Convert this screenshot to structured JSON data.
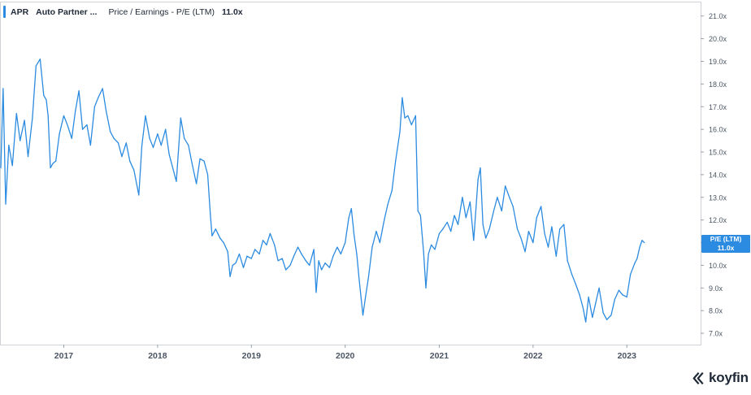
{
  "legend": {
    "ticker": "APR",
    "company": "Auto Partner ...",
    "metric": "Price / Earnings - P/E (LTM)",
    "last_value": "11.0x",
    "color": "#2b8be0"
  },
  "last_badge": {
    "label": "P/E (LTM)",
    "value": "11.0x"
  },
  "brand": {
    "name": "koyfin",
    "icon": "koyfin-logo-icon"
  },
  "chart_data": {
    "type": "line",
    "title": "",
    "xlabel": "",
    "ylabel": "",
    "ylim": [
      6.5,
      21.6
    ],
    "xlim": [
      "2016-05-01",
      "2023-10-15"
    ],
    "y_ticks": [
      "7.0x",
      "8.0x",
      "9.0x",
      "10.0x",
      "11.0x",
      "12.0x",
      "13.0x",
      "14.0x",
      "15.0x",
      "16.0x",
      "17.0x",
      "18.0x",
      "19.0x",
      "20.0x",
      "21.0x"
    ],
    "x_ticks": [
      "2017",
      "2018",
      "2019",
      "2020",
      "2021",
      "2022",
      "2023"
    ],
    "series": [
      {
        "name": "P/E (LTM)",
        "color": "#2b8be0",
        "points": [
          [
            "2016-05-01",
            14.3
          ],
          [
            "2016-05-10",
            17.8
          ],
          [
            "2016-05-20",
            12.7
          ],
          [
            "2016-06-01",
            15.3
          ],
          [
            "2016-06-15",
            14.4
          ],
          [
            "2016-07-01",
            16.7
          ],
          [
            "2016-07-15",
            15.5
          ],
          [
            "2016-08-01",
            16.4
          ],
          [
            "2016-08-15",
            14.8
          ],
          [
            "2016-09-01",
            16.5
          ],
          [
            "2016-09-15",
            18.8
          ],
          [
            "2016-10-01",
            19.1
          ],
          [
            "2016-10-15",
            17.5
          ],
          [
            "2016-10-25",
            17.3
          ],
          [
            "2016-11-01",
            16.6
          ],
          [
            "2016-11-10",
            14.3
          ],
          [
            "2016-11-20",
            14.5
          ],
          [
            "2016-12-01",
            14.6
          ],
          [
            "2016-12-15",
            15.8
          ],
          [
            "2017-01-01",
            16.6
          ],
          [
            "2017-01-15",
            16.2
          ],
          [
            "2017-02-01",
            15.6
          ],
          [
            "2017-02-15",
            16.8
          ],
          [
            "2017-03-01",
            17.7
          ],
          [
            "2017-03-15",
            16.0
          ],
          [
            "2017-04-01",
            16.2
          ],
          [
            "2017-04-15",
            15.3
          ],
          [
            "2017-05-01",
            17.0
          ],
          [
            "2017-05-15",
            17.4
          ],
          [
            "2017-06-01",
            17.8
          ],
          [
            "2017-06-15",
            16.8
          ],
          [
            "2017-07-01",
            15.9
          ],
          [
            "2017-07-15",
            15.6
          ],
          [
            "2017-08-01",
            15.4
          ],
          [
            "2017-08-15",
            14.8
          ],
          [
            "2017-09-01",
            15.4
          ],
          [
            "2017-09-15",
            14.6
          ],
          [
            "2017-10-01",
            14.2
          ],
          [
            "2017-10-20",
            13.1
          ],
          [
            "2017-11-01",
            15.3
          ],
          [
            "2017-11-15",
            16.6
          ],
          [
            "2017-12-01",
            15.6
          ],
          [
            "2017-12-15",
            15.2
          ],
          [
            "2018-01-01",
            15.8
          ],
          [
            "2018-01-15",
            15.3
          ],
          [
            "2018-02-01",
            16.0
          ],
          [
            "2018-02-15",
            14.9
          ],
          [
            "2018-03-01",
            14.3
          ],
          [
            "2018-03-15",
            13.7
          ],
          [
            "2018-04-01",
            16.5
          ],
          [
            "2018-04-15",
            15.6
          ],
          [
            "2018-05-01",
            15.3
          ],
          [
            "2018-05-15",
            14.5
          ],
          [
            "2018-06-01",
            13.6
          ],
          [
            "2018-06-15",
            14.7
          ],
          [
            "2018-07-01",
            14.6
          ],
          [
            "2018-07-15",
            14.0
          ],
          [
            "2018-07-25",
            12.3
          ],
          [
            "2018-08-01",
            11.3
          ],
          [
            "2018-08-15",
            11.6
          ],
          [
            "2018-09-01",
            11.2
          ],
          [
            "2018-09-15",
            11.0
          ],
          [
            "2018-10-01",
            10.6
          ],
          [
            "2018-10-10",
            9.5
          ],
          [
            "2018-10-20",
            10.0
          ],
          [
            "2018-11-01",
            10.1
          ],
          [
            "2018-11-15",
            10.5
          ],
          [
            "2018-12-01",
            9.9
          ],
          [
            "2018-12-15",
            10.4
          ],
          [
            "2019-01-01",
            10.3
          ],
          [
            "2019-01-15",
            10.7
          ],
          [
            "2019-02-01",
            10.5
          ],
          [
            "2019-02-15",
            11.1
          ],
          [
            "2019-03-01",
            10.9
          ],
          [
            "2019-03-15",
            11.4
          ],
          [
            "2019-04-01",
            10.9
          ],
          [
            "2019-04-15",
            10.2
          ],
          [
            "2019-05-01",
            10.3
          ],
          [
            "2019-05-15",
            9.8
          ],
          [
            "2019-06-01",
            10.0
          ],
          [
            "2019-06-15",
            10.4
          ],
          [
            "2019-07-01",
            10.8
          ],
          [
            "2019-07-15",
            10.5
          ],
          [
            "2019-08-01",
            10.2
          ],
          [
            "2019-08-15",
            10.0
          ],
          [
            "2019-09-01",
            10.7
          ],
          [
            "2019-09-10",
            8.8
          ],
          [
            "2019-09-20",
            10.2
          ],
          [
            "2019-10-01",
            9.8
          ],
          [
            "2019-10-15",
            10.1
          ],
          [
            "2019-11-01",
            9.9
          ],
          [
            "2019-11-15",
            10.4
          ],
          [
            "2019-12-01",
            10.8
          ],
          [
            "2019-12-15",
            10.5
          ],
          [
            "2020-01-01",
            11.0
          ],
          [
            "2020-01-15",
            12.1
          ],
          [
            "2020-01-25",
            12.5
          ],
          [
            "2020-02-05",
            11.3
          ],
          [
            "2020-02-15",
            10.5
          ],
          [
            "2020-02-25",
            9.3
          ],
          [
            "2020-03-10",
            7.8
          ],
          [
            "2020-03-20",
            8.6
          ],
          [
            "2020-04-01",
            9.5
          ],
          [
            "2020-04-15",
            10.8
          ],
          [
            "2020-05-01",
            11.5
          ],
          [
            "2020-05-15",
            11.0
          ],
          [
            "2020-06-01",
            12.0
          ],
          [
            "2020-06-15",
            12.7
          ],
          [
            "2020-07-01",
            13.3
          ],
          [
            "2020-07-15",
            14.6
          ],
          [
            "2020-08-01",
            15.9
          ],
          [
            "2020-08-10",
            17.4
          ],
          [
            "2020-08-20",
            16.5
          ],
          [
            "2020-09-01",
            16.6
          ],
          [
            "2020-09-15",
            16.2
          ],
          [
            "2020-10-01",
            16.6
          ],
          [
            "2020-10-10",
            12.4
          ],
          [
            "2020-10-20",
            12.2
          ],
          [
            "2020-11-01",
            10.6
          ],
          [
            "2020-11-10",
            9.0
          ],
          [
            "2020-11-20",
            10.5
          ],
          [
            "2020-12-01",
            10.9
          ],
          [
            "2020-12-15",
            10.7
          ],
          [
            "2021-01-01",
            11.4
          ],
          [
            "2021-01-15",
            11.6
          ],
          [
            "2021-02-01",
            11.9
          ],
          [
            "2021-02-15",
            11.5
          ],
          [
            "2021-03-01",
            12.2
          ],
          [
            "2021-03-15",
            11.8
          ],
          [
            "2021-04-01",
            13.0
          ],
          [
            "2021-04-15",
            12.1
          ],
          [
            "2021-05-01",
            12.8
          ],
          [
            "2021-05-15",
            11.1
          ],
          [
            "2021-06-01",
            13.8
          ],
          [
            "2021-06-10",
            14.3
          ],
          [
            "2021-06-20",
            11.8
          ],
          [
            "2021-07-01",
            11.2
          ],
          [
            "2021-07-15",
            11.6
          ],
          [
            "2021-08-01",
            12.4
          ],
          [
            "2021-08-15",
            13.0
          ],
          [
            "2021-09-01",
            12.4
          ],
          [
            "2021-09-15",
            13.5
          ],
          [
            "2021-10-01",
            13.0
          ],
          [
            "2021-10-15",
            12.6
          ],
          [
            "2021-11-01",
            11.6
          ],
          [
            "2021-11-15",
            11.2
          ],
          [
            "2021-12-01",
            10.6
          ],
          [
            "2021-12-15",
            11.5
          ],
          [
            "2022-01-01",
            11.0
          ],
          [
            "2022-01-15",
            12.1
          ],
          [
            "2022-02-01",
            12.6
          ],
          [
            "2022-02-15",
            11.4
          ],
          [
            "2022-03-01",
            10.8
          ],
          [
            "2022-03-15",
            11.7
          ],
          [
            "2022-04-01",
            10.4
          ],
          [
            "2022-04-15",
            11.6
          ],
          [
            "2022-05-01",
            11.8
          ],
          [
            "2022-05-15",
            10.2
          ],
          [
            "2022-06-01",
            9.6
          ],
          [
            "2022-06-15",
            9.2
          ],
          [
            "2022-07-01",
            8.7
          ],
          [
            "2022-07-15",
            8.1
          ],
          [
            "2022-07-25",
            7.5
          ],
          [
            "2022-08-05",
            8.6
          ],
          [
            "2022-08-20",
            7.7
          ],
          [
            "2022-09-01",
            8.3
          ],
          [
            "2022-09-15",
            9.0
          ],
          [
            "2022-10-01",
            7.9
          ],
          [
            "2022-10-15",
            7.6
          ],
          [
            "2022-11-01",
            7.8
          ],
          [
            "2022-11-15",
            8.5
          ],
          [
            "2022-12-01",
            8.9
          ],
          [
            "2022-12-15",
            8.7
          ],
          [
            "2023-01-01",
            8.6
          ],
          [
            "2023-01-15",
            9.6
          ],
          [
            "2023-02-01",
            10.1
          ],
          [
            "2023-02-10",
            10.3
          ],
          [
            "2023-02-20",
            10.8
          ],
          [
            "2023-03-01",
            11.1
          ],
          [
            "2023-03-10",
            11.0
          ]
        ]
      }
    ]
  }
}
